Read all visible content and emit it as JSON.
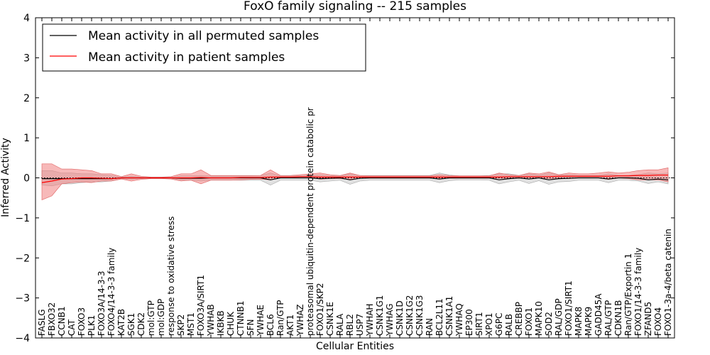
{
  "chart_data": {
    "type": "line",
    "title": "FoxO family signaling -- 215 samples",
    "xlabel": "Cellular Entities",
    "ylabel": "Inferred Activity",
    "ylim": [
      -4,
      4
    ],
    "yticks": [
      "−4",
      "−3",
      "−2",
      "−1",
      "0",
      "1",
      "2",
      "3",
      "4"
    ],
    "colors": {
      "permuted": "#000000",
      "patient": "#ff0000",
      "permuted_band": "#c8c8c8",
      "patient_band": "#f08080"
    },
    "categories": [
      "FASLG",
      "FBXO32",
      "CCNB1",
      "CAT",
      "FOXO3",
      "PLK1",
      "FOXO3A/14-3-3",
      "FOXO4/14-3-3 family",
      "KAT2B",
      "SGK1",
      "CDK2",
      "mol:GTP",
      "mol:GDP",
      "response to oxidative stress",
      "SKP2",
      "MST1",
      "FOXO3A/SIRT1",
      "YWHAB",
      "IKBKB",
      "CHUK",
      "CTNNB1",
      "SFN",
      "YWHAE",
      "BCL6",
      "Ran/GTP",
      "AKT1",
      "YWHAZ",
      "proteasomal ubiquitin-dependent protein catabolic pr",
      "FOXO1/SKP2",
      "CSNK1E",
      "RALA",
      "RBL2",
      "USP7",
      "YWHAH",
      "CSNK1G1",
      "YWHAG",
      "CSNK1D",
      "CSNK1G2",
      "CSNK1G3",
      "RAN",
      "BCL2L11",
      "CSNK1A1",
      "YWHAQ",
      "EP300",
      "SIRT1",
      "XPO1",
      "G6PC",
      "RALB",
      "CREBBP",
      "FOXO1",
      "MAPK10",
      "SOD2",
      "RAL/GDP",
      "FOXO1/SIRT1",
      "MAPK8",
      "MAPK9",
      "GADD45A",
      "RAL/GTP",
      "CDKN1B",
      "Ran/GTP/Exportin 1",
      "FOXO1/14-3-3 family",
      "ZFAND5",
      "FOXO4",
      "FOXO1-3a-4/beta catenin"
    ],
    "series": [
      {
        "name": "Mean activity in all permuted samples",
        "values": [
          -0.02,
          -0.02,
          -0.02,
          -0.02,
          -0.02,
          -0.02,
          -0.02,
          -0.02,
          0.0,
          0.0,
          0.0,
          0.0,
          0.0,
          0.0,
          -0.01,
          -0.01,
          -0.01,
          0.0,
          0.0,
          0.0,
          0.0,
          0.0,
          0.0,
          -0.05,
          0.0,
          0.0,
          0.0,
          0.0,
          -0.02,
          -0.01,
          0.0,
          -0.05,
          -0.01,
          0.0,
          0.0,
          0.0,
          0.0,
          0.0,
          0.0,
          0.0,
          -0.03,
          0.0,
          0.0,
          0.0,
          0.0,
          0.0,
          -0.05,
          -0.02,
          0.0,
          -0.03,
          0.0,
          -0.05,
          -0.02,
          -0.01,
          0.0,
          0.0,
          0.0,
          -0.03,
          0.0,
          0.0,
          -0.01,
          -0.05,
          -0.03,
          -0.05
        ],
        "band": [
          [
            -0.18,
            0.18
          ],
          [
            -0.2,
            0.18
          ],
          [
            -0.15,
            0.12
          ],
          [
            -0.15,
            0.12
          ],
          [
            -0.12,
            0.1
          ],
          [
            -0.1,
            0.1
          ],
          [
            -0.1,
            0.08
          ],
          [
            -0.08,
            0.06
          ],
          [
            -0.02,
            0.02
          ],
          [
            -0.04,
            0.04
          ],
          [
            -0.02,
            0.02
          ],
          [
            -0.01,
            0.01
          ],
          [
            -0.01,
            0.01
          ],
          [
            -0.01,
            0.01
          ],
          [
            -0.06,
            0.05
          ],
          [
            -0.06,
            0.05
          ],
          [
            -0.08,
            0.06
          ],
          [
            -0.06,
            0.05
          ],
          [
            -0.06,
            0.05
          ],
          [
            -0.06,
            0.05
          ],
          [
            -0.06,
            0.05
          ],
          [
            -0.06,
            0.05
          ],
          [
            -0.06,
            0.06
          ],
          [
            -0.18,
            0.12
          ],
          [
            -0.06,
            0.05
          ],
          [
            -0.06,
            0.05
          ],
          [
            -0.06,
            0.06
          ],
          [
            -0.06,
            0.06
          ],
          [
            -0.1,
            0.08
          ],
          [
            -0.08,
            0.06
          ],
          [
            -0.06,
            0.05
          ],
          [
            -0.16,
            0.1
          ],
          [
            -0.08,
            0.06
          ],
          [
            -0.06,
            0.06
          ],
          [
            -0.06,
            0.06
          ],
          [
            -0.06,
            0.06
          ],
          [
            -0.06,
            0.06
          ],
          [
            -0.06,
            0.06
          ],
          [
            -0.06,
            0.06
          ],
          [
            -0.06,
            0.06
          ],
          [
            -0.12,
            0.12
          ],
          [
            -0.07,
            0.07
          ],
          [
            -0.05,
            0.05
          ],
          [
            -0.05,
            0.05
          ],
          [
            -0.05,
            0.05
          ],
          [
            -0.06,
            0.06
          ],
          [
            -0.15,
            0.1
          ],
          [
            -0.1,
            0.1
          ],
          [
            -0.06,
            0.06
          ],
          [
            -0.14,
            0.1
          ],
          [
            -0.07,
            0.07
          ],
          [
            -0.16,
            0.12
          ],
          [
            -0.1,
            0.08
          ],
          [
            -0.09,
            0.08
          ],
          [
            -0.06,
            0.06
          ],
          [
            -0.06,
            0.06
          ],
          [
            -0.06,
            0.06
          ],
          [
            -0.12,
            0.1
          ],
          [
            -0.06,
            0.06
          ],
          [
            -0.06,
            0.06
          ],
          [
            -0.08,
            0.08
          ],
          [
            -0.14,
            0.12
          ],
          [
            -0.1,
            0.1
          ],
          [
            -0.15,
            0.12
          ]
        ]
      },
      {
        "name": "Mean activity in patient samples",
        "values": [
          -0.12,
          -0.08,
          -0.03,
          -0.02,
          0.0,
          0.0,
          -0.01,
          -0.02,
          0.0,
          0.0,
          0.0,
          0.0,
          0.0,
          0.0,
          0.0,
          0.0,
          0.01,
          0.0,
          0.0,
          0.0,
          0.01,
          0.01,
          0.01,
          0.02,
          0.02,
          0.02,
          0.03,
          0.03,
          0.02,
          0.02,
          0.02,
          0.02,
          0.02,
          0.02,
          0.02,
          0.02,
          0.02,
          0.02,
          0.02,
          0.02,
          0.02,
          0.02,
          0.02,
          0.02,
          0.02,
          0.02,
          0.02,
          0.03,
          0.03,
          0.03,
          0.03,
          0.03,
          0.04,
          0.04,
          0.04,
          0.04,
          0.04,
          0.04,
          0.05,
          0.05,
          0.06,
          0.06,
          0.07,
          0.07
        ],
        "band": [
          [
            -0.55,
            0.35
          ],
          [
            -0.45,
            0.35
          ],
          [
            -0.15,
            0.22
          ],
          [
            -0.12,
            0.22
          ],
          [
            -0.1,
            0.2
          ],
          [
            -0.12,
            0.18
          ],
          [
            -0.08,
            0.1
          ],
          [
            -0.08,
            0.1
          ],
          [
            -0.03,
            0.03
          ],
          [
            -0.08,
            0.1
          ],
          [
            -0.04,
            0.04
          ],
          [
            -0.02,
            0.02
          ],
          [
            -0.02,
            0.02
          ],
          [
            -0.03,
            0.03
          ],
          [
            -0.08,
            0.1
          ],
          [
            -0.06,
            0.1
          ],
          [
            -0.15,
            0.2
          ],
          [
            -0.06,
            0.06
          ],
          [
            -0.06,
            0.06
          ],
          [
            -0.06,
            0.06
          ],
          [
            -0.05,
            0.06
          ],
          [
            -0.04,
            0.06
          ],
          [
            -0.03,
            0.06
          ],
          [
            -0.05,
            0.2
          ],
          [
            0.0,
            0.06
          ],
          [
            0.0,
            0.06
          ],
          [
            0.0,
            0.08
          ],
          [
            0.0,
            0.1
          ],
          [
            -0.03,
            0.12
          ],
          [
            -0.02,
            0.08
          ],
          [
            -0.02,
            0.06
          ],
          [
            -0.04,
            0.12
          ],
          [
            -0.01,
            0.06
          ],
          [
            -0.01,
            0.05
          ],
          [
            -0.01,
            0.05
          ],
          [
            -0.01,
            0.05
          ],
          [
            -0.01,
            0.05
          ],
          [
            -0.01,
            0.05
          ],
          [
            -0.01,
            0.05
          ],
          [
            -0.01,
            0.05
          ],
          [
            -0.02,
            0.08
          ],
          [
            -0.01,
            0.06
          ],
          [
            -0.01,
            0.05
          ],
          [
            -0.01,
            0.05
          ],
          [
            -0.01,
            0.05
          ],
          [
            -0.01,
            0.05
          ],
          [
            -0.01,
            0.12
          ],
          [
            -0.01,
            0.08
          ],
          [
            -0.01,
            0.06
          ],
          [
            0.0,
            0.12
          ],
          [
            0.0,
            0.1
          ],
          [
            -0.02,
            0.15
          ],
          [
            0.0,
            0.08
          ],
          [
            -0.02,
            0.12
          ],
          [
            0.0,
            0.1
          ],
          [
            0.0,
            0.1
          ],
          [
            0.0,
            0.12
          ],
          [
            -0.04,
            0.15
          ],
          [
            0.0,
            0.12
          ],
          [
            -0.02,
            0.14
          ],
          [
            -0.05,
            0.18
          ],
          [
            -0.05,
            0.2
          ],
          [
            -0.05,
            0.2
          ],
          [
            -0.1,
            0.25
          ]
        ]
      }
    ],
    "legend": {
      "placement": "upper-left"
    }
  }
}
